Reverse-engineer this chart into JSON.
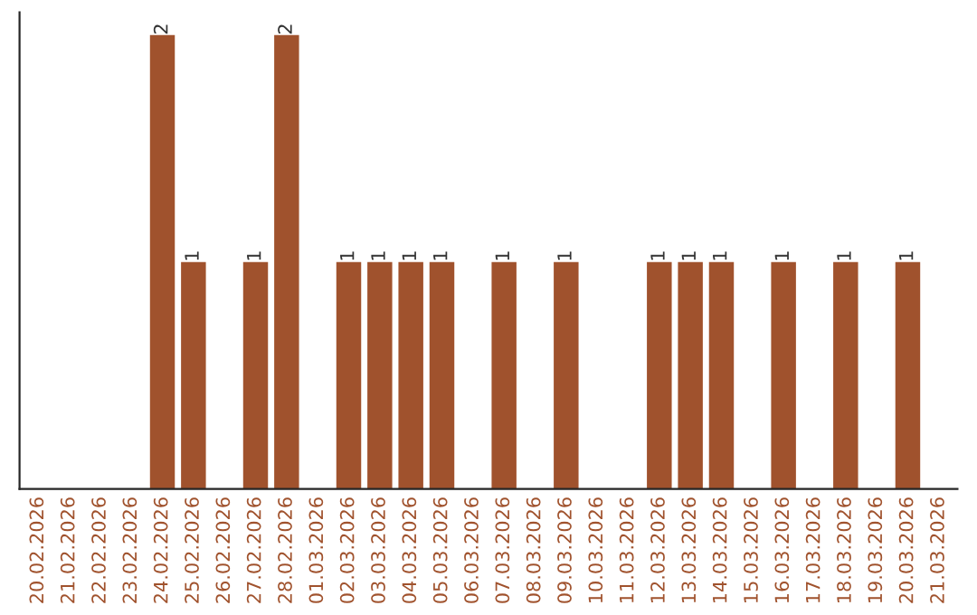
{
  "chart_data": {
    "type": "bar",
    "categories": [
      "20.02.2026",
      "21.02.2026",
      "22.02.2026",
      "23.02.2026",
      "24.02.2026",
      "25.02.2026",
      "26.02.2026",
      "27.02.2026",
      "28.02.2026",
      "01.03.2026",
      "02.03.2026",
      "03.03.2026",
      "04.03.2026",
      "05.03.2026",
      "06.03.2026",
      "07.03.2026",
      "08.03.2026",
      "09.03.2026",
      "10.03.2026",
      "11.03.2026",
      "12.03.2026",
      "13.03.2026",
      "14.03.2026",
      "15.03.2026",
      "16.03.2026",
      "17.03.2026",
      "18.03.2026",
      "19.03.2026",
      "20.03.2026",
      "21.03.2026"
    ],
    "values": [
      0,
      0,
      0,
      0,
      2,
      1,
      0,
      1,
      2,
      0,
      1,
      1,
      1,
      1,
      0,
      1,
      0,
      1,
      0,
      0,
      1,
      1,
      1,
      0,
      1,
      0,
      1,
      0,
      1,
      0
    ],
    "value_labels": [
      null,
      null,
      null,
      null,
      "2",
      "1",
      null,
      "1",
      "2",
      null,
      "1",
      "1",
      "1",
      "1",
      null,
      "1",
      null,
      "1",
      null,
      null,
      "1",
      "1",
      "1",
      null,
      "1",
      null,
      "1",
      null,
      "1",
      null
    ],
    "color": "#a0522d",
    "ylim": [
      0,
      2.1
    ],
    "tick_labels": "x",
    "grid": false,
    "legend": false
  }
}
